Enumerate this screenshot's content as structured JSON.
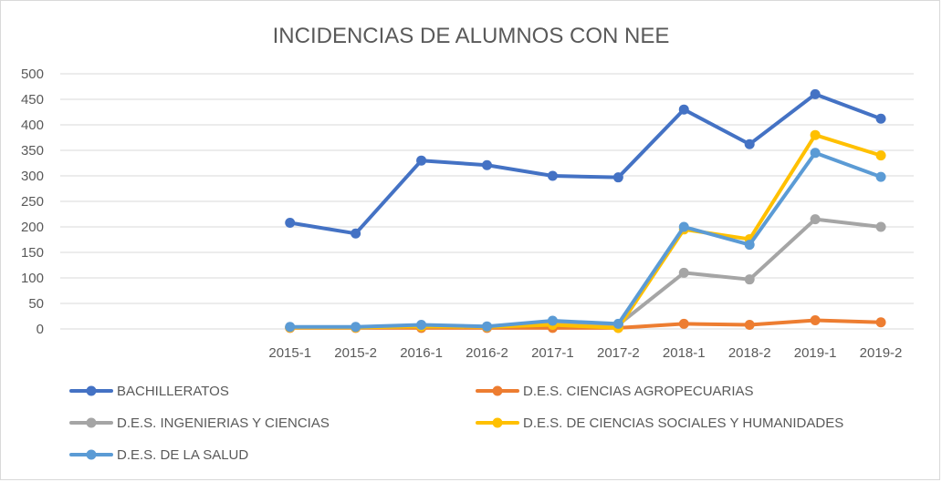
{
  "chart_data": {
    "type": "line",
    "title": "INCIDENCIAS DE ALUMNOS CON NEE",
    "xlabel": "",
    "ylabel": "",
    "categories": [
      "",
      "",
      "",
      "2015-1",
      "2015-2",
      "2016-1",
      "2016-2",
      "2017-1",
      "2017-2",
      "2018-1",
      "2018-2",
      "2019-1",
      "2019-2"
    ],
    "ylim": [
      0,
      500
    ],
    "yticks": [
      0,
      50,
      100,
      150,
      200,
      250,
      300,
      350,
      400,
      450,
      500
    ],
    "grid": true,
    "legend_position": "bottom",
    "series": [
      {
        "name": "BACHILLERATOS",
        "color": "#4472C4",
        "values": [
          null,
          null,
          null,
          208,
          187,
          330,
          321,
          300,
          297,
          430,
          362,
          460,
          412
        ]
      },
      {
        "name": "D.E.S. CIENCIAS AGROPECUARIAS",
        "color": "#ED7D31",
        "values": [
          null,
          null,
          null,
          2,
          2,
          2,
          2,
          2,
          2,
          10,
          8,
          17,
          13
        ]
      },
      {
        "name": "D.E.S. INGENIERIAS Y CIENCIAS",
        "color": "#A5A5A5",
        "values": [
          null,
          null,
          null,
          3,
          3,
          5,
          4,
          10,
          8,
          110,
          97,
          215,
          200
        ]
      },
      {
        "name": "D.E.S. DE CIENCIAS SOCIALES Y HUMANIDADES",
        "color": "#FFC000",
        "values": [
          null,
          null,
          null,
          3,
          3,
          5,
          4,
          8,
          2,
          195,
          176,
          380,
          340
        ]
      },
      {
        "name": "D.E.S. DE LA SALUD",
        "color": "#5B9BD5",
        "values": [
          null,
          null,
          null,
          4,
          4,
          8,
          5,
          16,
          10,
          200,
          165,
          345,
          298
        ]
      }
    ]
  }
}
